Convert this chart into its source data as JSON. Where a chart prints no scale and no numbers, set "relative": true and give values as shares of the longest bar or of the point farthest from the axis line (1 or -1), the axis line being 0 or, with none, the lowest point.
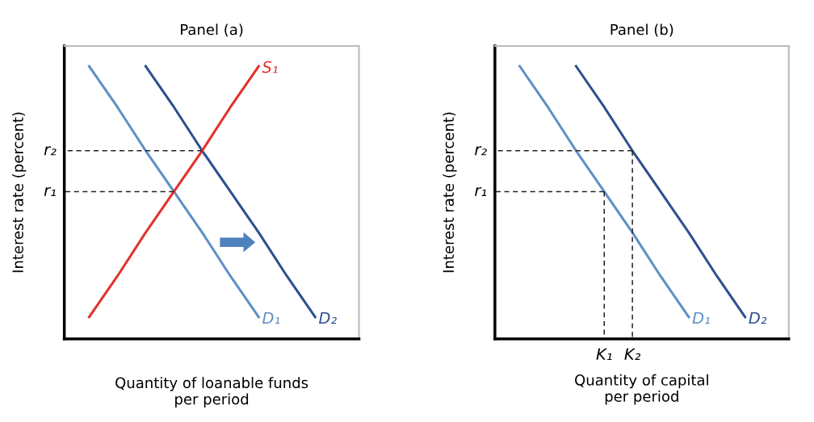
{
  "chart_data": [
    {
      "type": "line",
      "title": "Panel (a)",
      "xlabel": "Quantity of loanable funds\nper period",
      "ylabel": "Interest rate (percent)",
      "relative": true,
      "categories": [
        null,
        null,
        null,
        null,
        null,
        null,
        null,
        null,
        null,
        null,
        null
      ],
      "series": [
        {
          "name": "D₁",
          "color": "#5f8fc8",
          "values": [
            null,
            1,
            0.85,
            0.69,
            0.54,
            0.39,
            0.23,
            0.08,
            null,
            null,
            null
          ]
        },
        {
          "name": "D₂",
          "color": "#2f4f8f",
          "values": [
            null,
            null,
            null,
            1,
            0.85,
            0.69,
            0.54,
            0.39,
            0.23,
            0.08,
            null
          ]
        },
        {
          "name": "S₁",
          "color": "#e2322b",
          "values": [
            null,
            0.08,
            0.23,
            0.39,
            0.54,
            0.69,
            0.85,
            1,
            null,
            null,
            null
          ]
        },
        {
          "name": "r₂",
          "color": "#222222",
          "line_style": "dashed",
          "values": [
            0.69,
            0.69,
            0.69,
            0.69,
            0.69,
            0.69,
            null,
            null,
            null,
            null,
            null
          ]
        },
        {
          "name": "r₁",
          "color": "#222222",
          "line_style": "dashed",
          "values": [
            0.54,
            0.54,
            0.54,
            0.54,
            0.54,
            null,
            null,
            null,
            null,
            null,
            null
          ]
        }
      ]
    },
    {
      "type": "line",
      "title": "Panel (b)",
      "xlabel": "Quantity of capital\nper period",
      "ylabel": "Interest rate (percent)",
      "relative": true,
      "categories": [
        null,
        null,
        null,
        null,
        "K₁",
        "K₂",
        null,
        null,
        null,
        null,
        null
      ],
      "series": [
        {
          "name": "D₁",
          "color": "#5f8fc8",
          "values": [
            null,
            1,
            0.85,
            0.69,
            0.54,
            0.39,
            0.23,
            0.08,
            null,
            null,
            null
          ]
        },
        {
          "name": "D₂",
          "color": "#2f4f8f",
          "values": [
            null,
            null,
            null,
            1,
            0.85,
            0.69,
            0.54,
            0.39,
            0.23,
            0.08,
            null
          ]
        },
        {
          "name": "r₂",
          "color": "#222222",
          "line_style": "dashed",
          "values": [
            0.69,
            0.69,
            0.69,
            0.69,
            0.69,
            0.69,
            null,
            null,
            null,
            null,
            null
          ]
        },
        {
          "name": "r₁",
          "color": "#222222",
          "line_style": "dashed",
          "values": [
            0.54,
            0.54,
            0.54,
            0.54,
            0.54,
            null,
            null,
            null,
            null,
            null,
            null
          ]
        },
        {
          "color": "#222222",
          "line_style": "dashed",
          "x": [
            "K₂",
            "K₂"
          ],
          "values": [
            0,
            0.69
          ]
        },
        {
          "color": "#222222",
          "line_style": "dashed",
          "x": [
            "K₁",
            "K₁"
          ],
          "values": [
            0,
            0.54
          ]
        }
      ]
    }
  ]
}
